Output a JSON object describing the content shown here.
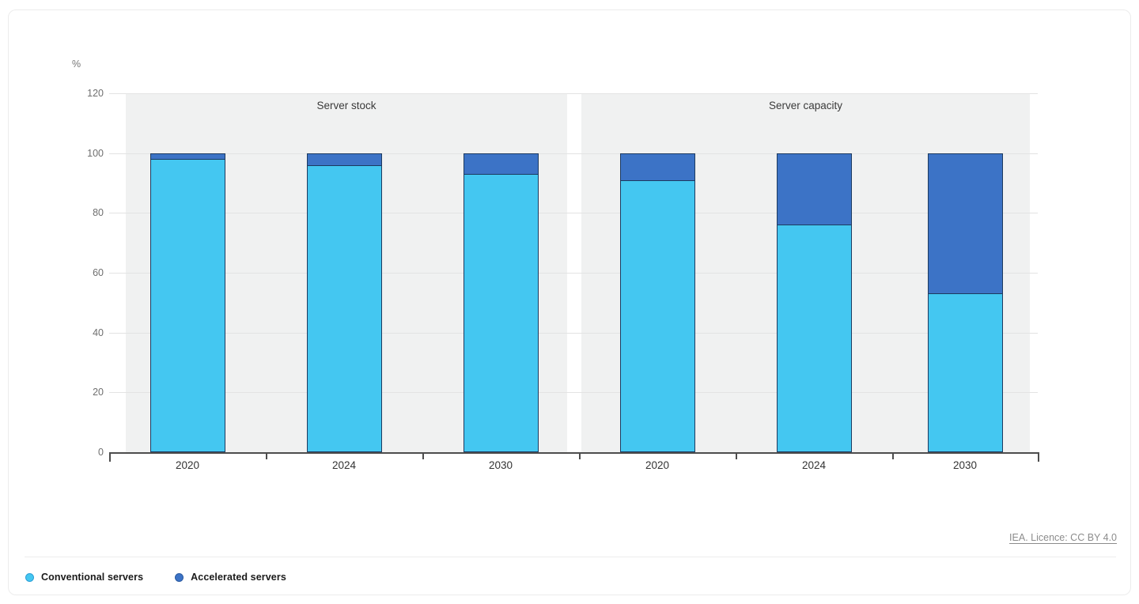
{
  "page": {
    "attribution": "IEA. Licence: CC BY 4.0"
  },
  "chart_data": {
    "type": "bar",
    "stacked": true,
    "unit_label": "%",
    "ylim": [
      0,
      120
    ],
    "yticks": [
      0,
      20,
      40,
      60,
      80,
      100,
      120
    ],
    "grid": true,
    "legend_position": "bottom-left",
    "panels": [
      {
        "title": "Server stock",
        "categories": [
          "2020",
          "2024",
          "2030"
        ],
        "series": [
          {
            "name": "Conventional servers",
            "values": [
              98,
              96,
              93
            ]
          },
          {
            "name": "Accelerated servers",
            "values": [
              2,
              4,
              7
            ]
          }
        ]
      },
      {
        "title": "Server capacity",
        "categories": [
          "2020",
          "2024",
          "2030"
        ],
        "series": [
          {
            "name": "Conventional servers",
            "values": [
              91,
              76,
              53
            ]
          },
          {
            "name": "Accelerated servers",
            "values": [
              9,
              24,
              47
            ]
          }
        ]
      }
    ],
    "legend": [
      {
        "label": "Conventional servers",
        "color": "#44c7f1",
        "ring": "#2d9fd6"
      },
      {
        "label": "Accelerated servers",
        "color": "#3c73c6",
        "ring": "#2b5aa0"
      }
    ],
    "colors": {
      "conventional": "#44c7f1",
      "accelerated": "#3c73c6",
      "bar_border": "#1d3a5f",
      "panel_bg": "#f0f1f1",
      "gridline": "#e3e3e3",
      "axis": "#4d4d4d"
    }
  }
}
